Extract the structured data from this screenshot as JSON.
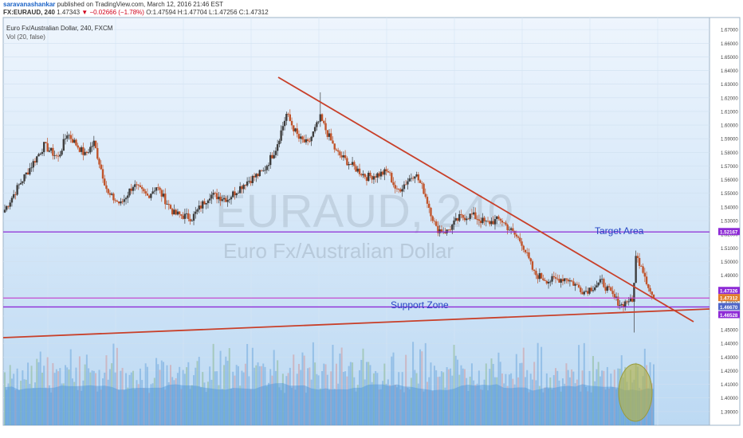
{
  "header": {
    "author": "saravanashankar",
    "published_text": "published on TradingView.com, March 12, 2016 21:46 EST",
    "symbol": "FX:EURAUD, 240",
    "last_price": "1.47343",
    "change": "−0.02666 (−1.78%)",
    "open": "O:1.47594",
    "high": "H:1.47704",
    "low": "L:1.47256",
    "close": "C:1.47312"
  },
  "legend": {
    "series_name": "Euro Fx/Australian Dollar, 240, FXCM",
    "volume_label": "Vol (20, false)"
  },
  "watermark": {
    "symbol": "EURAUD, 240",
    "name": "Euro Fx/Australian Dollar"
  },
  "colors": {
    "up": "#3e3e3e",
    "down": "#c0542b",
    "trendline": "#c8402a",
    "horizontal_line": "#8e2bd6",
    "annotation_text": "#2646c4",
    "volume": "#4a92d8",
    "background_top": "#eaf3fc",
    "background_bottom": "#bcd9f3"
  },
  "annotations": {
    "target_label": "Target Area",
    "support_label": "Support Zone"
  },
  "chart_data": {
    "type": "candlestick",
    "ylim": [
      1.38,
      1.68
    ],
    "y_ticks": [
      "1.67000",
      "1.66000",
      "1.65000",
      "1.64000",
      "1.63000",
      "1.62000",
      "1.61000",
      "1.60000",
      "1.59000",
      "1.58000",
      "1.57000",
      "1.56000",
      "1.55000",
      "1.54000",
      "1.53000",
      "1.52000",
      "1.51000",
      "1.50000",
      "1.49000",
      "1.48000",
      "1.47000",
      "1.46000",
      "1.45000",
      "1.44000",
      "1.43000",
      "1.42000",
      "1.41000",
      "1.40000",
      "1.39000"
    ],
    "price_labels": {
      "target": "1.52167",
      "current": "1.47326",
      "last": "1.47312",
      "support_top": "1.46670",
      "support_bottom": "1.46528"
    },
    "levels": {
      "target": 1.52167,
      "upper": 1.47326,
      "support": 1.4667
    },
    "key_points": [
      {
        "i": 0,
        "p": 1.538
      },
      {
        "i": 8,
        "p": 1.556
      },
      {
        "i": 22,
        "p": 1.585
      },
      {
        "i": 30,
        "p": 1.576
      },
      {
        "i": 35,
        "p": 1.594
      },
      {
        "i": 45,
        "p": 1.578
      },
      {
        "i": 50,
        "p": 1.587
      },
      {
        "i": 58,
        "p": 1.549
      },
      {
        "i": 65,
        "p": 1.542
      },
      {
        "i": 72,
        "p": 1.556
      },
      {
        "i": 80,
        "p": 1.548
      },
      {
        "i": 85,
        "p": 1.555
      },
      {
        "i": 95,
        "p": 1.535
      },
      {
        "i": 105,
        "p": 1.532
      },
      {
        "i": 115,
        "p": 1.549
      },
      {
        "i": 125,
        "p": 1.546
      },
      {
        "i": 135,
        "p": 1.558
      },
      {
        "i": 145,
        "p": 1.566
      },
      {
        "i": 152,
        "p": 1.583
      },
      {
        "i": 158,
        "p": 1.608
      },
      {
        "i": 165,
        "p": 1.59
      },
      {
        "i": 170,
        "p": 1.586
      },
      {
        "i": 177,
        "p": 1.605
      },
      {
        "i": 186,
        "p": 1.58
      },
      {
        "i": 195,
        "p": 1.57
      },
      {
        "i": 203,
        "p": 1.562
      },
      {
        "i": 210,
        "p": 1.564
      },
      {
        "i": 215,
        "p": 1.566
      },
      {
        "i": 220,
        "p": 1.551
      },
      {
        "i": 230,
        "p": 1.565
      },
      {
        "i": 235,
        "p": 1.552
      },
      {
        "i": 242,
        "p": 1.524
      },
      {
        "i": 248,
        "p": 1.522
      },
      {
        "i": 255,
        "p": 1.532
      },
      {
        "i": 262,
        "p": 1.534
      },
      {
        "i": 270,
        "p": 1.528
      },
      {
        "i": 278,
        "p": 1.531
      },
      {
        "i": 285,
        "p": 1.521
      },
      {
        "i": 290,
        "p": 1.514
      },
      {
        "i": 297,
        "p": 1.491
      },
      {
        "i": 305,
        "p": 1.486
      },
      {
        "i": 315,
        "p": 1.488
      },
      {
        "i": 325,
        "p": 1.478
      },
      {
        "i": 335,
        "p": 1.485
      },
      {
        "i": 342,
        "p": 1.473
      },
      {
        "i": 346,
        "p": 1.468
      },
      {
        "i": 350,
        "p": 1.472
      },
      {
        "i": 352,
        "p": 1.47
      },
      {
        "i": 354,
        "p": 1.503
      },
      {
        "i": 357,
        "p": 1.498
      },
      {
        "i": 362,
        "p": 1.478
      },
      {
        "i": 364,
        "p": 1.473
      }
    ],
    "spikes": [
      {
        "i": 177,
        "high": 1.624
      },
      {
        "i": 353,
        "low": 1.448
      }
    ]
  }
}
